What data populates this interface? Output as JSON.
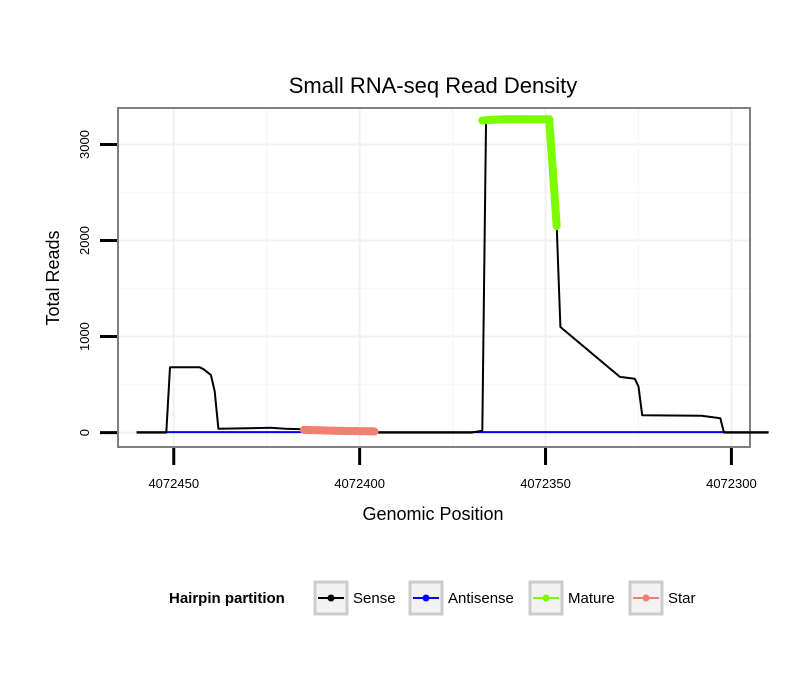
{
  "chart_data": {
    "type": "line",
    "title": "Small RNA-seq Read Density",
    "xlabel": "Genomic Position",
    "ylabel": "Total Reads",
    "x_reversed": true,
    "xlim": [
      4072465,
      4072295
    ],
    "ylim": [
      -150,
      3380
    ],
    "x_ticks": [
      4072450,
      4072400,
      4072350,
      4072300
    ],
    "x_tick_labels": [
      "4072450",
      "4072400",
      "4072350",
      "4072300"
    ],
    "y_ticks": [
      0,
      1000,
      2000,
      3000
    ],
    "y_tick_labels": [
      "0",
      "1000",
      "2000",
      "3000"
    ],
    "grid": true,
    "legend": {
      "title": "Hairpin partition",
      "position": "bottom",
      "entries": [
        {
          "name": "Sense",
          "color": "#000000"
        },
        {
          "name": "Antisense",
          "color": "#0000ff"
        },
        {
          "name": "Mature",
          "color": "#7cfc00"
        },
        {
          "name": "Star",
          "color": "#f08070"
        }
      ]
    },
    "series": [
      {
        "name": "Sense",
        "color": "#000000",
        "x": [
          4072460,
          4072452,
          4072451,
          4072443,
          4072442,
          4072440,
          4072439,
          4072438,
          4072424,
          4072420,
          4072410,
          4072400,
          4072398,
          4072370,
          4072367,
          4072366,
          4072366,
          4072349,
          4072348,
          4072347,
          4072346,
          4072330,
          4072326,
          4072325,
          4072324,
          4072308,
          4072303,
          4072302,
          4072290
        ],
        "y": [
          0,
          0,
          680,
          680,
          660,
          600,
          430,
          40,
          50,
          40,
          30,
          10,
          0,
          0,
          20,
          3200,
          3250,
          3250,
          3000,
          2150,
          1100,
          580,
          560,
          480,
          180,
          175,
          150,
          0,
          0
        ]
      },
      {
        "name": "Antisense",
        "color": "#0000ff",
        "x": [
          4072460,
          4072290
        ],
        "y": [
          5,
          5
        ]
      },
      {
        "name": "Mature",
        "color": "#7cfc00",
        "x": [
          4072367,
          4072365,
          4072363,
          4072361,
          4072359,
          4072357,
          4072355,
          4072353,
          4072351,
          4072349,
          4072347
        ],
        "y": [
          3250,
          3255,
          3260,
          3262,
          3263,
          3263,
          3262,
          3262,
          3262,
          3262,
          2150
        ]
      },
      {
        "name": "Star",
        "color": "#f08070",
        "x": [
          4072415,
          4072413,
          4072411,
          4072409,
          4072407,
          4072405,
          4072403,
          4072401,
          4072399,
          4072397,
          4072396
        ],
        "y": [
          28,
          26,
          24,
          22,
          20,
          18,
          17,
          16,
          15,
          14,
          12
        ]
      }
    ]
  }
}
